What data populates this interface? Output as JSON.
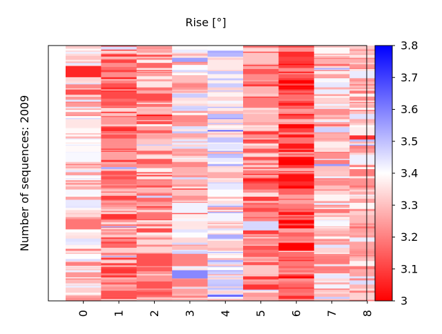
{
  "chart_data": {
    "type": "heatmap",
    "title": "Rise [°]",
    "ylabel": "Number of sequences: 2009",
    "xlabel": "",
    "categories": [
      "0",
      "1",
      "2",
      "3",
      "4",
      "5",
      "6",
      "7",
      "8"
    ],
    "n_rows": 2009,
    "colorbar": {
      "min": 3.0,
      "max": 3.8,
      "center": 3.4,
      "ticks": [
        "3",
        "3.1",
        "3.2",
        "3.3",
        "3.4",
        "3.5",
        "3.6",
        "3.7",
        "3.8"
      ],
      "colormap": "bwr_r",
      "low_color": "#ff0000",
      "mid_color": "#ffffff",
      "high_color": "#0000ff"
    },
    "column_mean_values": [
      3.32,
      3.2,
      3.25,
      3.34,
      3.4,
      3.22,
      3.12,
      3.3,
      3.32
    ]
  }
}
